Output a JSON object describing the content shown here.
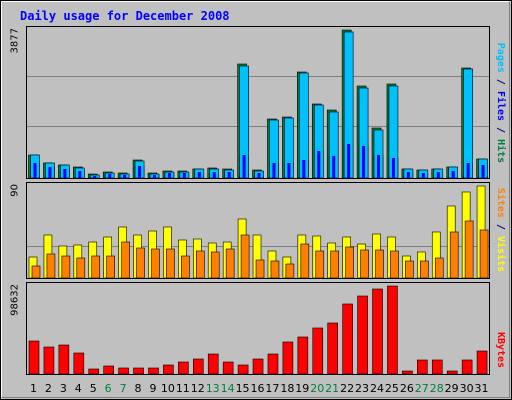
{
  "chart_data": [
    {
      "type": "bar",
      "title": "Daily usage for December 2008",
      "ylabel_parts": [
        {
          "text": "Pages",
          "color": "#00c0ff"
        },
        {
          "text": " / ",
          "color": "#000080"
        },
        {
          "text": "Files",
          "color": "#0000ff"
        },
        {
          "text": " / ",
          "color": "#000080"
        },
        {
          "text": "Hits",
          "color": "#008040"
        }
      ],
      "ymax_label": "3877",
      "ylim": [
        0,
        3877
      ],
      "categories": [
        "1",
        "2",
        "3",
        "4",
        "5",
        "6",
        "7",
        "8",
        "9",
        "10",
        "11",
        "12",
        "13",
        "14",
        "15",
        "16",
        "17",
        "18",
        "19",
        "20",
        "21",
        "22",
        "23",
        "24",
        "25",
        "26",
        "27",
        "28",
        "29",
        "30",
        "31"
      ],
      "weekend_days": [
        "6",
        "7",
        "13",
        "14",
        "20",
        "21",
        "27",
        "28"
      ],
      "series": [
        {
          "name": "Hits",
          "color": "#008040",
          "values": [
            610,
            400,
            350,
            280,
            100,
            150,
            120,
            460,
            120,
            180,
            180,
            240,
            250,
            230,
            2980,
            200,
            1550,
            1590,
            2780,
            1950,
            1770,
            3877,
            2400,
            1300,
            2460,
            240,
            220,
            240,
            290,
            2880,
            500
          ]
        },
        {
          "name": "Files",
          "color": "#0000ff",
          "values": [
            380,
            290,
            230,
            180,
            60,
            100,
            70,
            320,
            80,
            120,
            120,
            160,
            170,
            150,
            600,
            130,
            380,
            380,
            460,
            700,
            580,
            880,
            840,
            610,
            520,
            160,
            130,
            160,
            190,
            380,
            340
          ]
        },
        {
          "name": "Pages",
          "color": "#00c0ff",
          "values": [
            600,
            390,
            340,
            270,
            90,
            140,
            110,
            450,
            110,
            170,
            170,
            230,
            240,
            220,
            2930,
            190,
            1520,
            1570,
            2750,
            1900,
            1720,
            3820,
            2360,
            1260,
            2420,
            230,
            210,
            230,
            280,
            2850,
            490
          ]
        }
      ]
    },
    {
      "type": "bar",
      "ylabel_parts": [
        {
          "text": "Sites",
          "color": "#ff8000"
        },
        {
          "text": " / ",
          "color": "#000080"
        },
        {
          "text": "Visits",
          "color": "#ffff00"
        }
      ],
      "ymax_label": "90",
      "ylim": [
        0,
        90
      ],
      "categories": [
        "1",
        "2",
        "3",
        "4",
        "5",
        "6",
        "7",
        "8",
        "9",
        "10",
        "11",
        "12",
        "13",
        "14",
        "15",
        "16",
        "17",
        "18",
        "19",
        "20",
        "21",
        "22",
        "23",
        "24",
        "25",
        "26",
        "27",
        "28",
        "29",
        "30",
        "31"
      ],
      "series": [
        {
          "name": "Visits",
          "color": "#ffff00",
          "values": [
            21,
            42,
            31,
            32,
            35,
            40,
            50,
            42,
            46,
            50,
            37,
            38,
            34,
            35,
            58,
            42,
            26,
            21,
            42,
            41,
            34,
            40,
            33,
            43,
            40,
            22,
            25,
            45,
            70,
            84,
            90
          ]
        },
        {
          "name": "Sites",
          "color": "#ff8000",
          "values": [
            12,
            23,
            22,
            20,
            22,
            22,
            35,
            29,
            28,
            28,
            22,
            26,
            25,
            28,
            42,
            18,
            17,
            14,
            33,
            26,
            26,
            30,
            27,
            27,
            26,
            17,
            17,
            20,
            45,
            56,
            47
          ]
        }
      ]
    },
    {
      "type": "bar",
      "ylabel_parts": [
        {
          "text": "KBytes",
          "color": "#ff0000"
        }
      ],
      "ymax_label": "98632",
      "ylim": [
        0,
        98632
      ],
      "categories": [
        "1",
        "2",
        "3",
        "4",
        "5",
        "6",
        "7",
        "8",
        "9",
        "10",
        "11",
        "12",
        "13",
        "14",
        "15",
        "16",
        "17",
        "18",
        "19",
        "20",
        "21",
        "22",
        "23",
        "24",
        "25",
        "26",
        "27",
        "28",
        "29",
        "30",
        "31"
      ],
      "series": [
        {
          "name": "KBytes",
          "color": "#ff0000",
          "values": [
            37500,
            30000,
            32000,
            24000,
            5500,
            9500,
            7000,
            6500,
            6500,
            10000,
            14000,
            17000,
            22000,
            13500,
            10000,
            17000,
            22000,
            36000,
            41000,
            52000,
            57000,
            79000,
            87000,
            95500,
            98632,
            3500,
            15500,
            15500,
            3500,
            15500,
            25500
          ]
        }
      ]
    }
  ]
}
